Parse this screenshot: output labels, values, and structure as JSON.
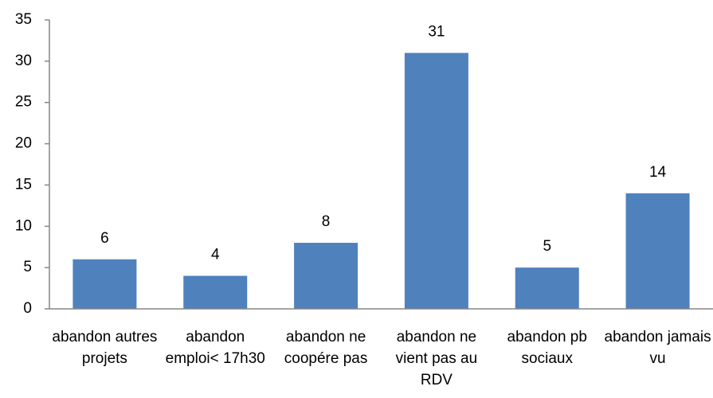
{
  "chart_data": {
    "type": "bar",
    "categories": [
      "abandon autres projets",
      "abandon emploi< 17h30",
      "abandon ne coopére pas",
      "abandon ne vient pas au RDV",
      "abandon pb sociaux",
      "abandon jamais vu"
    ],
    "values": [
      6,
      4,
      8,
      31,
      5,
      14
    ],
    "color": "#4f81bd",
    "ylim": [
      0,
      35
    ],
    "yticks": [
      0,
      5,
      10,
      15,
      20,
      25,
      30,
      35
    ],
    "grid": false
  }
}
